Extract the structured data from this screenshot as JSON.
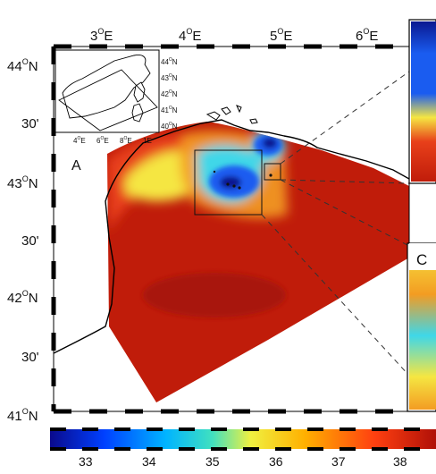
{
  "map": {
    "panel_labels": {
      "a": "A",
      "c": "C"
    },
    "top_axis": [
      {
        "deg": "3",
        "sup": "O",
        "hemi": "E"
      },
      {
        "deg": "4",
        "sup": "O",
        "hemi": "E"
      },
      {
        "deg": "5",
        "sup": "O",
        "hemi": "E"
      },
      {
        "deg": "6",
        "sup": "O",
        "hemi": "E"
      }
    ],
    "left_axis": [
      {
        "deg": "44",
        "sup": "O",
        "hemi": "N"
      },
      {
        "deg": "30'",
        "sup": "",
        "hemi": ""
      },
      {
        "deg": "43",
        "sup": "O",
        "hemi": "N"
      },
      {
        "deg": "30'",
        "sup": "",
        "hemi": ""
      },
      {
        "deg": "42",
        "sup": "O",
        "hemi": "N"
      },
      {
        "deg": "30'",
        "sup": "",
        "hemi": ""
      },
      {
        "deg": "41",
        "sup": "O",
        "hemi": "N"
      }
    ],
    "inset": {
      "lat_labels": [
        {
          "deg": "44",
          "sup": "O",
          "hemi": "N"
        },
        {
          "deg": "43",
          "sup": "O",
          "hemi": "N"
        },
        {
          "deg": "42",
          "sup": "O",
          "hemi": "N"
        },
        {
          "deg": "41",
          "sup": "O",
          "hemi": "N"
        },
        {
          "deg": "40",
          "sup": "O",
          "hemi": "N"
        }
      ],
      "lon_labels": [
        {
          "deg": "4",
          "sup": "O",
          "hemi": "E"
        },
        {
          "deg": "6",
          "sup": "O",
          "hemi": "E"
        },
        {
          "deg": "8",
          "sup": "O",
          "hemi": "E"
        },
        {
          "deg": "1",
          "sup": "",
          "hemi": "E"
        }
      ]
    },
    "colorbar": {
      "ticks": [
        "33",
        "34",
        "35",
        "36",
        "37",
        "38"
      ],
      "stops": [
        "#0a0a8c",
        "#0040ff",
        "#00b4ff",
        "#40e0c0",
        "#f0f040",
        "#ffb000",
        "#ff4010",
        "#b01008"
      ]
    },
    "colors": {
      "land": "#ffffff",
      "high": "#c01c0a",
      "deep": "#a81208",
      "mid": "#e8401a",
      "orange": "#f39c22",
      "yellow": "#f5e642",
      "cyan": "#3fd7e8",
      "blue": "#1a5cf0",
      "navy": "#0a1890"
    }
  }
}
